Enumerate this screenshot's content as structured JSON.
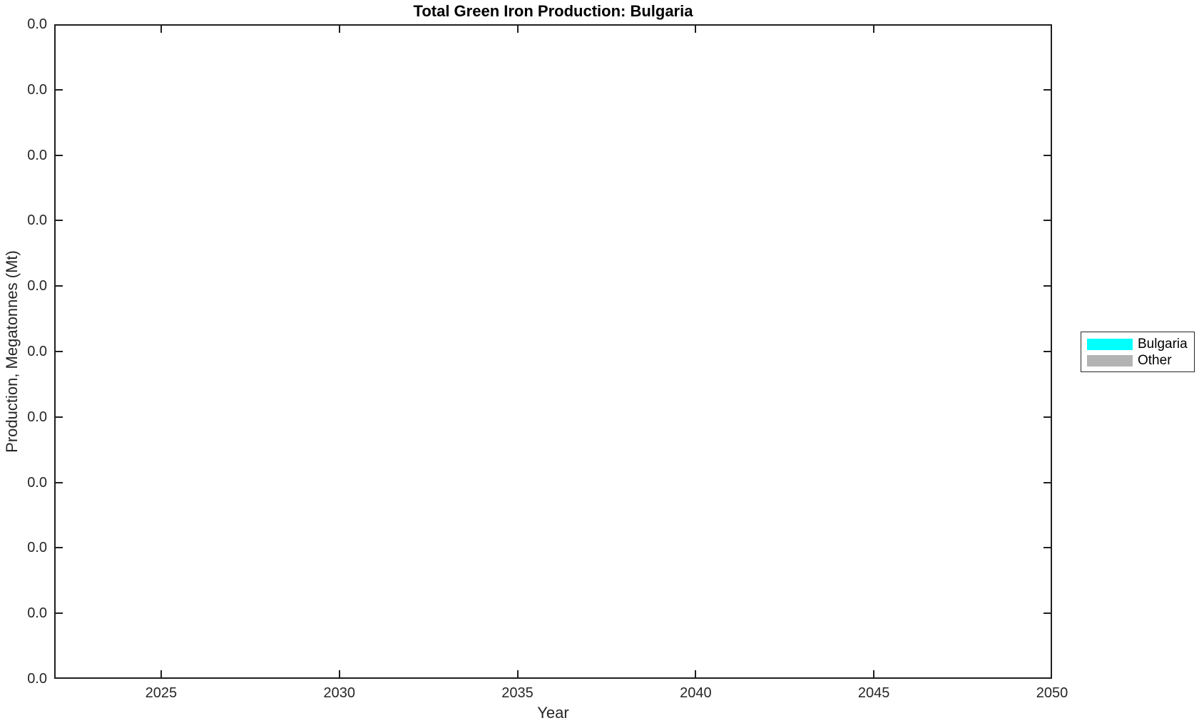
{
  "figure": {
    "background_color": "#FFFFFF",
    "axis_color": "#1F1F1F",
    "tick_label_color": "#262626"
  },
  "chart_data": {
    "type": "bar",
    "stacked": true,
    "title": "Total Green Iron Production: Bulgaria",
    "xlabel": "Year",
    "ylabel": "Production, Megatonnes (Mt)",
    "xlim": [
      2022,
      2050
    ],
    "x_ticks": [
      2025,
      2030,
      2035,
      2040,
      2045,
      2050
    ],
    "y_tick_labels": [
      "0.0",
      "0.0",
      "0.0",
      "0.0",
      "0.0",
      "0.0",
      "0.0",
      "0.0",
      "0.0",
      "0.0",
      "0.0"
    ],
    "grid": false,
    "legend_position": "outside-right",
    "series": [
      {
        "name": "Bulgaria",
        "color": "#00FFFF",
        "x": [
          2025,
          2030,
          2035,
          2040,
          2045,
          2050
        ],
        "values": [
          0,
          0,
          0,
          0,
          0,
          0
        ]
      },
      {
        "name": "Other",
        "color": "#B3B3B3",
        "x": [
          2025,
          2030,
          2035,
          2040,
          2045,
          2050
        ],
        "values": [
          0,
          0,
          0,
          0,
          0,
          0
        ]
      }
    ]
  }
}
